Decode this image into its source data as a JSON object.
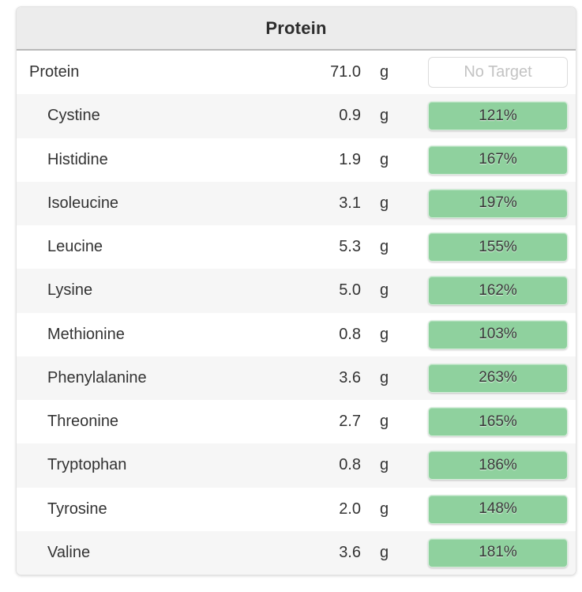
{
  "panel": {
    "title": "Protein",
    "rows": [
      {
        "label": "Protein",
        "amount": "71.0",
        "unit": "g",
        "target_button": "No Target"
      },
      {
        "label": "Cystine",
        "amount": "0.9",
        "unit": "g",
        "percent_of_target": "121%"
      },
      {
        "label": "Histidine",
        "amount": "1.9",
        "unit": "g",
        "percent_of_target": "167%"
      },
      {
        "label": "Isoleucine",
        "amount": "3.1",
        "unit": "g",
        "percent_of_target": "197%"
      },
      {
        "label": "Leucine",
        "amount": "5.3",
        "unit": "g",
        "percent_of_target": "155%"
      },
      {
        "label": "Lysine",
        "amount": "5.0",
        "unit": "g",
        "percent_of_target": "162%"
      },
      {
        "label": "Methionine",
        "amount": "0.8",
        "unit": "g",
        "percent_of_target": "103%"
      },
      {
        "label": "Phenylalanine",
        "amount": "3.6",
        "unit": "g",
        "percent_of_target": "263%"
      },
      {
        "label": "Threonine",
        "amount": "2.7",
        "unit": "g",
        "percent_of_target": "165%"
      },
      {
        "label": "Tryptophan",
        "amount": "0.8",
        "unit": "g",
        "percent_of_target": "186%"
      },
      {
        "label": "Tyrosine",
        "amount": "2.0",
        "unit": "g",
        "percent_of_target": "148%"
      },
      {
        "label": "Valine",
        "amount": "3.6",
        "unit": "g",
        "percent_of_target": "181%"
      }
    ]
  },
  "colors": {
    "badge_green": "#8fd19e",
    "header_bg": "#ececec",
    "row_alt_bg": "#f6f6f6",
    "text": "#333333",
    "no_target_text": "#c3c3c3"
  }
}
